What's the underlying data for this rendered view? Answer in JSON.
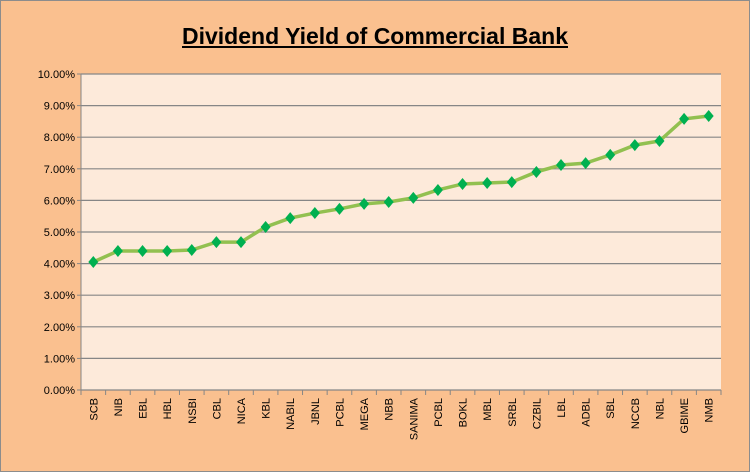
{
  "chart_data": {
    "type": "line",
    "title": "Dividend Yield of Commercial Bank",
    "xlabel": "",
    "ylabel": "",
    "ylim": [
      0,
      10
    ],
    "y_ticks": [
      "0.00%",
      "1.00%",
      "2.00%",
      "3.00%",
      "4.00%",
      "5.00%",
      "6.00%",
      "7.00%",
      "8.00%",
      "9.00%",
      "10.00%"
    ],
    "grid": true,
    "legend": "none",
    "categories": [
      "SCB",
      "NIB",
      "EBL",
      "HBL",
      "NSBI",
      "CBL",
      "NICA",
      "KBL",
      "NABIL",
      "JBNL",
      "PCBL",
      "MEGA",
      "NBB",
      "SANIMA",
      "PCBL",
      "BOKL",
      "MBL",
      "SRBL",
      "CZBIL",
      "LBL",
      "ADBL",
      "SBL",
      "NCCB",
      "NBL",
      "GBIME",
      "NMB"
    ],
    "series": [
      {
        "name": "Dividend Yield (%)",
        "color": "#92c050",
        "marker_color": "#00b050",
        "values": [
          4.05,
          4.4,
          4.4,
          4.4,
          4.43,
          4.68,
          4.68,
          5.16,
          5.44,
          5.6,
          5.73,
          5.89,
          5.95,
          6.08,
          6.33,
          6.52,
          6.55,
          6.58,
          6.9,
          7.12,
          7.18,
          7.44,
          7.75,
          7.88,
          8.58,
          8.67
        ]
      }
    ]
  }
}
